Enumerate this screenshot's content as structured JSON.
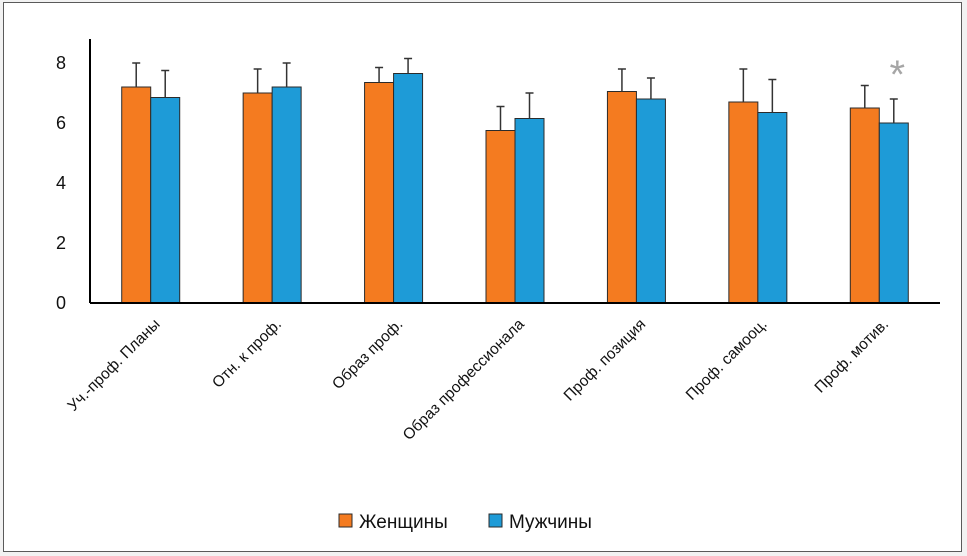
{
  "chart_data": {
    "type": "bar",
    "categories": [
      "Уч.-проф. Планы",
      "Отн. к проф.",
      "Образ проф.",
      "Образ профессионала",
      "Проф. позиция",
      "Проф. самооц.",
      "Проф. мотив."
    ],
    "series": [
      {
        "name": "Женщины",
        "color": "#f47b20",
        "values": [
          7.2,
          7.0,
          7.35,
          5.75,
          7.05,
          6.7,
          6.5
        ],
        "errors": [
          0.8,
          0.8,
          0.5,
          0.8,
          0.75,
          1.1,
          0.75
        ]
      },
      {
        "name": "Мужчины",
        "color": "#1e9bd7",
        "values": [
          6.85,
          7.2,
          7.65,
          6.15,
          6.8,
          6.35,
          6.0
        ],
        "errors": [
          0.9,
          0.8,
          0.5,
          0.85,
          0.7,
          1.1,
          0.8
        ]
      }
    ],
    "yticks": [
      0,
      2,
      4,
      6,
      8
    ],
    "ylim": [
      0,
      9
    ],
    "annotations": [
      {
        "text": "*",
        "category_index": 6,
        "color": "#a6a6a6"
      }
    ],
    "legend_position": "bottom-center",
    "grid": false
  }
}
